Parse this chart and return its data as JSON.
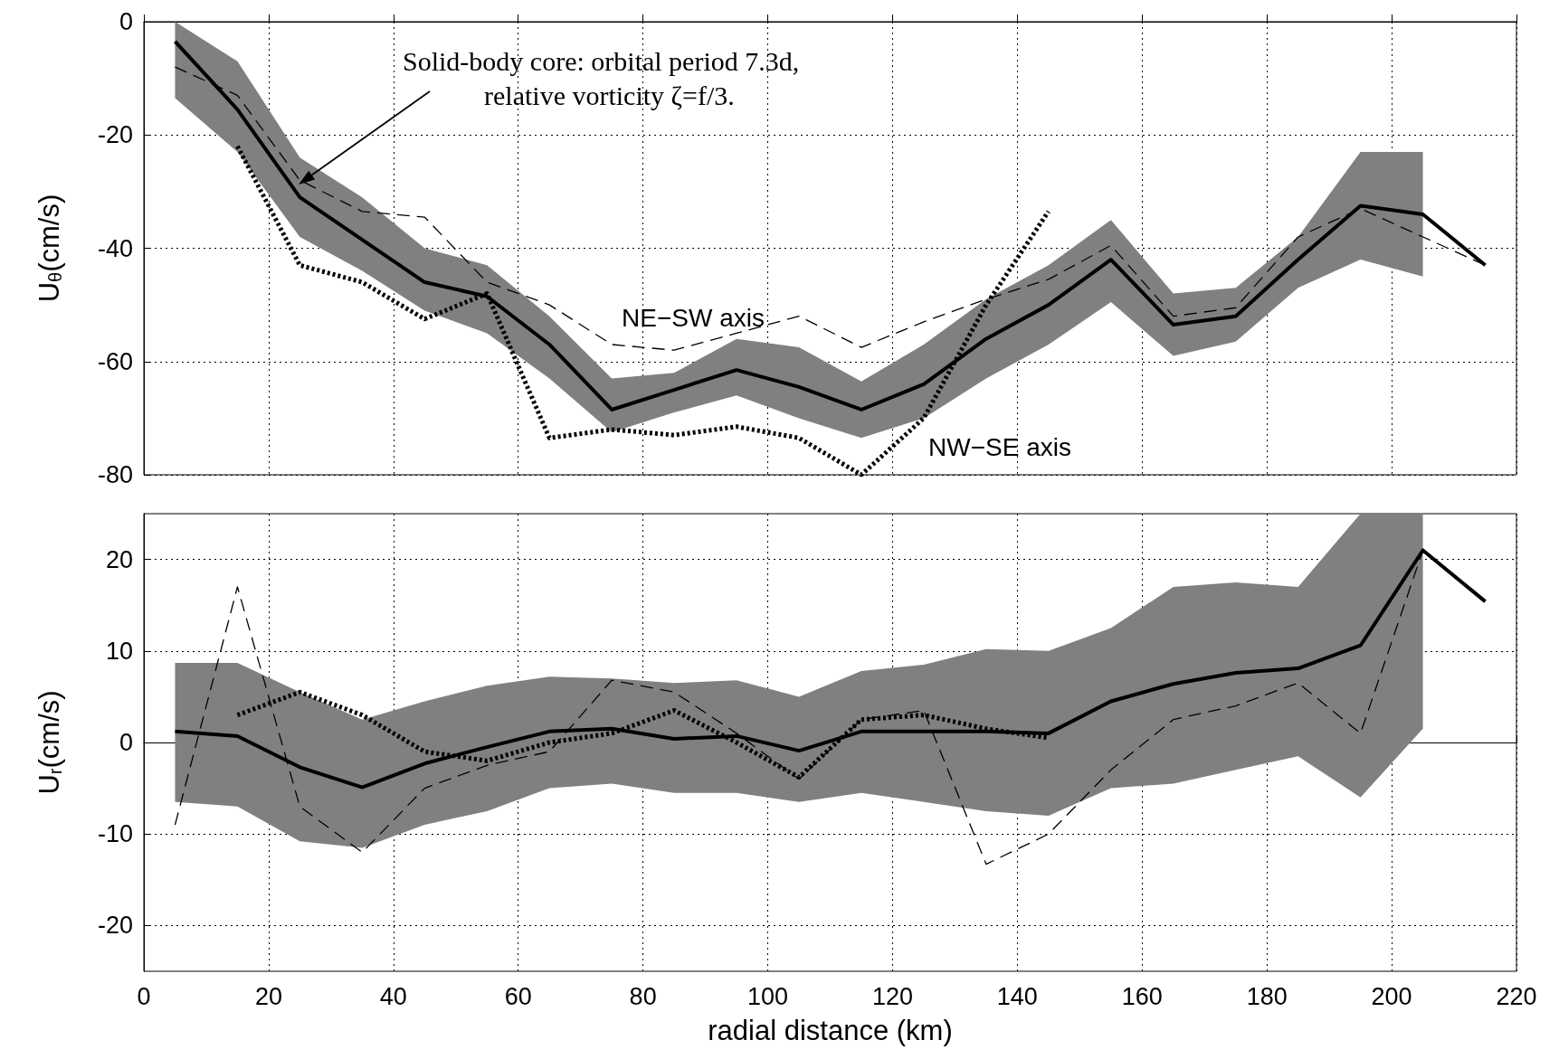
{
  "chart_data": [
    {
      "type": "line",
      "ylabel": "U$_{θ}$(cm/s)",
      "x": [
        5,
        15,
        25,
        35,
        45,
        55,
        65,
        75,
        85,
        95,
        105,
        115,
        125,
        135,
        145,
        155,
        165,
        175,
        185,
        195,
        205,
        215
      ],
      "xlim": [
        0,
        220
      ],
      "xticks": [
        0,
        20,
        40,
        60,
        80,
        100,
        120,
        140,
        160,
        180,
        200,
        220
      ],
      "ylim": [
        -80,
        0
      ],
      "yticks": [
        -80,
        -60,
        -40,
        -20,
        0
      ],
      "grid": true,
      "tick_labels": "y",
      "annotations": [
        "Solid-body core: orbital period 7.3d,\n            relative vorticity ζ=f/3.",
        "NE−SW axis",
        "NW−SE axis"
      ],
      "series": [
        {
          "color": "#000000",
          "line_style": "solid",
          "values": [
            -3.5,
            -15.5,
            -31,
            -38.5,
            -46,
            -48.5,
            -57,
            -68.5,
            -65,
            -61.5,
            -64.5,
            -68.5,
            -64,
            -56,
            -50,
            -42,
            -53.5,
            -52,
            -42,
            -32.5,
            -34,
            -43
          ],
          "upper": [
            0,
            -7,
            -24,
            -31,
            -40,
            -43,
            -52,
            -63,
            -62,
            -56,
            -57.5,
            -63.5,
            -57,
            -49,
            -43,
            -35,
            -48,
            -47,
            -38,
            -23,
            -23,
            null
          ],
          "lower": [
            -13.5,
            -23,
            -38,
            -44,
            -51,
            -55,
            -63,
            -72.5,
            -69,
            -66,
            -70,
            -73.5,
            -70,
            -63,
            -57,
            -49.5,
            -59,
            -56.5,
            -47,
            -42,
            -45,
            null
          ]
        },
        {
          "color": "#000000",
          "line_style": "dashed",
          "values": [
            -8,
            -13,
            -28,
            -33.5,
            -34.5,
            -46,
            -50,
            -57,
            -58,
            -55,
            -52,
            -57.5,
            -53,
            -49,
            -45.5,
            -39.5,
            -52,
            -50.5,
            -38,
            -33,
            -38,
            -43
          ]
        },
        {
          "color": "#000000",
          "line_style": "dotted",
          "values": [
            null,
            -22,
            -43,
            -46,
            -52.5,
            -48,
            -73.5,
            -72,
            -73,
            -71.5,
            -73.5,
            -80,
            -70,
            -50,
            -33.5,
            null,
            null,
            null,
            null,
            null,
            null,
            null
          ]
        }
      ]
    },
    {
      "type": "line",
      "ylabel": "U$_{r}$(cm/s)",
      "xlabel": "radial distance (km)",
      "x": [
        5,
        15,
        25,
        35,
        45,
        55,
        65,
        75,
        85,
        95,
        105,
        115,
        125,
        135,
        145,
        155,
        165,
        175,
        185,
        195,
        205,
        215
      ],
      "xlim": [
        0,
        220
      ],
      "xticks": [
        0,
        20,
        40,
        60,
        80,
        100,
        120,
        140,
        160,
        180,
        200,
        220
      ],
      "ylim": [
        -25,
        25
      ],
      "yticks": [
        -20,
        -10,
        0,
        10,
        20
      ],
      "grid": true,
      "series": [
        {
          "color": "#000000",
          "line_style": "solid",
          "values": [
            1.2,
            0.7,
            -2.7,
            -4.9,
            -2.3,
            -0.5,
            1.2,
            1.5,
            0.4,
            0.7,
            -0.9,
            1.2,
            1.2,
            1.2,
            1,
            4.5,
            6.4,
            7.6,
            8.1,
            10.6,
            21,
            15.4
          ],
          "upper": [
            8.7,
            8.7,
            5.5,
            2.5,
            4.5,
            6.2,
            7.2,
            7,
            6.5,
            6.8,
            5,
            7.8,
            8.5,
            10.2,
            10,
            12.5,
            17,
            17.5,
            17,
            25,
            25,
            null
          ],
          "lower": [
            -6.5,
            -7,
            -10.8,
            -11.5,
            -9,
            -7.5,
            -5,
            -4.5,
            -5.5,
            -5.5,
            -6.5,
            -5.5,
            -6.5,
            -7.5,
            -8,
            -5,
            -4.5,
            -3,
            -1.5,
            -6,
            1.5,
            null
          ]
        },
        {
          "color": "#000000",
          "line_style": "dashed",
          "values": [
            -9,
            17,
            -7,
            -12,
            -5,
            -2.5,
            -1,
            6.8,
            5.5,
            1,
            -4,
            2.5,
            3.5,
            -13.3,
            -10,
            -3,
            2.5,
            4,
            6.5,
            1,
            21,
            null
          ]
        },
        {
          "color": "#000000",
          "line_style": "dotted",
          "values": [
            null,
            3,
            5.5,
            3,
            -1,
            -2,
            0,
            1,
            3.5,
            0,
            -3.8,
            2.5,
            3,
            1.5,
            0.5,
            null,
            null,
            null,
            null,
            null,
            null,
            null
          ]
        }
      ]
    }
  ]
}
